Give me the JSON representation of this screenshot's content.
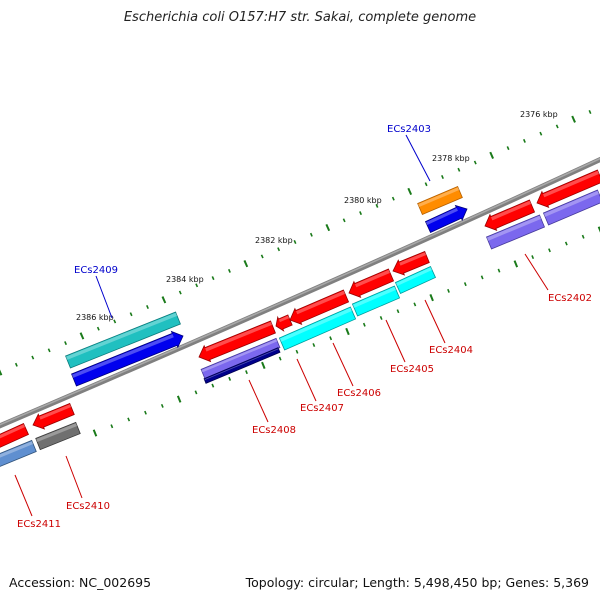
{
  "title": "Escherichia coli O157:H7 str. Sakai, complete genome",
  "footer": {
    "accession": "Accession: NC_002695",
    "topology": "Topology: circular; Length: 5,498,450 bp; Genes: 5,369"
  },
  "colors": {
    "backbone": "#808080",
    "tick": "#1a7a1a",
    "label_red": "#cc0000",
    "label_blue": "#0000cc"
  },
  "ticks": [
    {
      "label": "2376 kbp"
    },
    {
      "label": "2378 kbp"
    },
    {
      "label": "2380 kbp"
    },
    {
      "label": "2382 kbp"
    },
    {
      "label": "2384 kbp"
    },
    {
      "label": "2386 kbp"
    }
  ],
  "genes": [
    {
      "label": "ECs2402",
      "label_color": "#cc0000"
    },
    {
      "label": "ECs2403",
      "label_color": "#0000cc"
    },
    {
      "label": "ECs2404",
      "label_color": "#cc0000"
    },
    {
      "label": "ECs2405",
      "label_color": "#cc0000"
    },
    {
      "label": "ECs2406",
      "label_color": "#cc0000"
    },
    {
      "label": "ECs2407",
      "label_color": "#cc0000"
    },
    {
      "label": "ECs2408",
      "label_color": "#cc0000"
    },
    {
      "label": "ECs2409",
      "label_color": "#0000cc"
    },
    {
      "label": "ECs2410",
      "label_color": "#cc0000"
    },
    {
      "label": "ECs2411",
      "label_color": "#cc0000"
    }
  ]
}
